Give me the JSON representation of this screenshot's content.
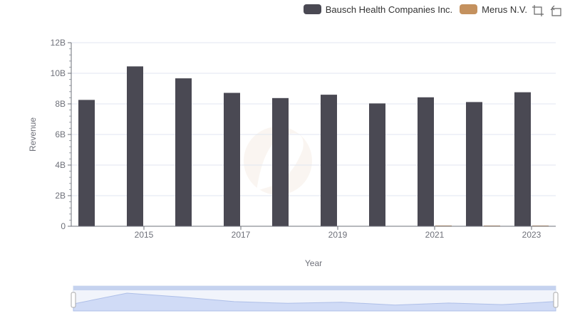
{
  "legend": {
    "series_a": "Bausch Health Companies Inc.",
    "series_b": "Merus N.V."
  },
  "toolbox": [
    "zoom-icon",
    "zoom-reset-icon"
  ],
  "chart_data": {
    "type": "bar",
    "title": "",
    "xlabel": "Year",
    "ylabel": "Revenue",
    "ylim": [
      0,
      12000000000
    ],
    "y_ticks": [
      "0",
      "2B",
      "4B",
      "6B",
      "8B",
      "10B",
      "12B"
    ],
    "x_ticks": [
      "2015",
      "2017",
      "2019",
      "2021",
      "2023"
    ],
    "categories": [
      "2014",
      "2015",
      "2016",
      "2017",
      "2018",
      "2019",
      "2020",
      "2021",
      "2022",
      "2023"
    ],
    "series": [
      {
        "name": "Bausch Health Companies Inc.",
        "color": "#4a4953",
        "values": [
          8260000000,
          10450000000,
          9670000000,
          8720000000,
          8380000000,
          8600000000,
          8030000000,
          8430000000,
          8120000000,
          8760000000
        ]
      },
      {
        "name": "Merus N.V.",
        "color": "#c4915e",
        "values": [
          0,
          0,
          0,
          0,
          0,
          0,
          0,
          49000000,
          41000000,
          44000000
        ]
      }
    ],
    "grid": true,
    "legend_position": "top-right",
    "data_zoom": true
  }
}
